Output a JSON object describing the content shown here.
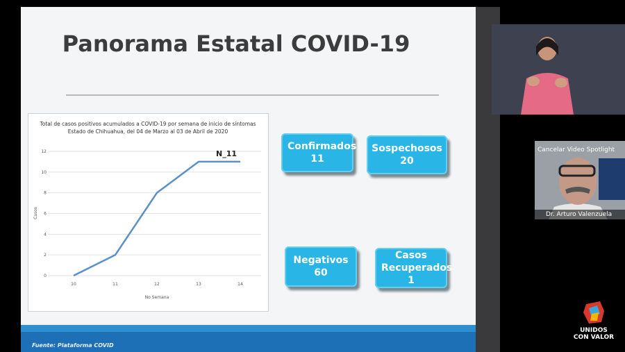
{
  "slide": {
    "title": "Panorama Estatal COVID-19",
    "source": "Fuente: Plataforma COVID",
    "cards": [
      {
        "label": "Confirmados",
        "value": 11
      },
      {
        "label": "Sospechosos",
        "value": 20
      },
      {
        "label": "Negativos",
        "value": 60
      },
      {
        "label": "Casos Recuperados",
        "value": 1
      }
    ]
  },
  "chart_data": {
    "type": "line",
    "title": "Total de casos positivos acumulados a  COVID-19 por semana de inicio de síntomas",
    "subtitle": "Estado de Chihuahua, del 04 de Marzo al 03 de Abril de 2020",
    "annotation": "N_11",
    "x_label": "No Semana",
    "y_label": "Casos",
    "x": [
      10,
      11,
      12,
      13,
      14
    ],
    "values": [
      0,
      2,
      8,
      11,
      11
    ],
    "color": "#5b8fc9",
    "xlim": [
      9.6,
      14.4
    ],
    "xticks": [
      10,
      11,
      12,
      13,
      14
    ],
    "ylim": [
      0,
      12
    ],
    "yticks": [
      0,
      2,
      4,
      6,
      8,
      10,
      12
    ],
    "grid": true
  },
  "video": {
    "spotlight_button": "Cancelar Video Spotlight",
    "speaker_name": "Dr. Arturo Valenzuela"
  },
  "logo": {
    "line1": "UNIDOS",
    "line2": "CON VALOR"
  }
}
